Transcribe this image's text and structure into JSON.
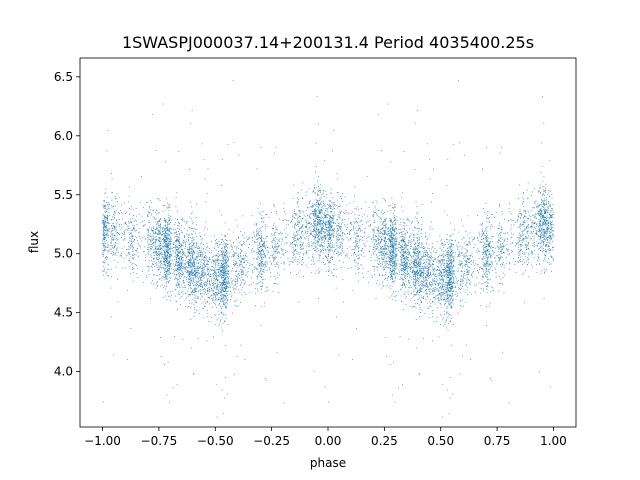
{
  "chart_data": {
    "type": "scatter",
    "title": "1SWASPJ000037.14+200131.4 Period 4035400.25s",
    "xlabel": "phase",
    "ylabel": "flux",
    "xlim": [
      -1.1,
      1.1
    ],
    "ylim": [
      3.53,
      6.66
    ],
    "xticks": [
      -1.0,
      -0.75,
      -0.5,
      -0.25,
      0.0,
      0.25,
      0.5,
      0.75,
      1.0
    ],
    "xtick_labels": [
      "−1.00",
      "−0.75",
      "−0.50",
      "−0.25",
      "0.00",
      "0.25",
      "0.50",
      "0.75",
      "1.00"
    ],
    "yticks": [
      4.0,
      4.5,
      5.0,
      5.5,
      6.0,
      6.5
    ],
    "ytick_labels": [
      "4.0",
      "4.5",
      "5.0",
      "5.5",
      "6.0",
      "6.5"
    ],
    "grid": false,
    "legend": "none",
    "point_color": "#1f77b4",
    "phase_range": [
      -1.0,
      1.0
    ],
    "light_curve_shape": {
      "phase": [
        0.0,
        0.05,
        0.1,
        0.15,
        0.2,
        0.25,
        0.3,
        0.35,
        0.4,
        0.45,
        0.5,
        0.55,
        0.6,
        0.65,
        0.7,
        0.75,
        0.8,
        0.85,
        0.9,
        0.95,
        1.0
      ],
      "flux": [
        5.22,
        5.2,
        5.15,
        5.12,
        5.1,
        5.08,
        5.02,
        4.95,
        4.9,
        4.82,
        4.8,
        4.82,
        4.88,
        4.95,
        5.0,
        5.02,
        5.08,
        5.15,
        5.2,
        5.25,
        5.22
      ]
    },
    "scatter_sigma": 0.16,
    "n_points": 9000
  }
}
